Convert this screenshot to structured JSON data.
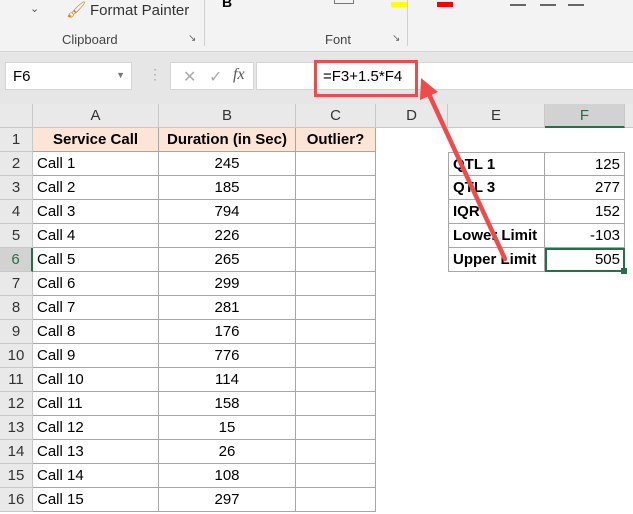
{
  "ribbon": {
    "format_painter": "Format Painter",
    "clipboard": "Clipboard",
    "font": "Font"
  },
  "formula_bar": {
    "name_box": "F6",
    "formula": "=F3+1.5*F4",
    "cancel": "✕",
    "enter": "✓",
    "fx": "fx"
  },
  "columns": [
    "A",
    "B",
    "C",
    "D",
    "E",
    "F"
  ],
  "rows": [
    "1",
    "2",
    "3",
    "4",
    "5",
    "6",
    "7",
    "8",
    "9",
    "10",
    "11",
    "12",
    "13",
    "14",
    "15",
    "16"
  ],
  "headers": {
    "a": "Service Call",
    "b": "Duration (in Sec)",
    "c": "Outlier?"
  },
  "calls": [
    {
      "name": "Call 1",
      "duration": "245"
    },
    {
      "name": "Call 2",
      "duration": "185"
    },
    {
      "name": "Call 3",
      "duration": "794"
    },
    {
      "name": "Call 4",
      "duration": "226"
    },
    {
      "name": "Call 5",
      "duration": "265"
    },
    {
      "name": "Call 6",
      "duration": "299"
    },
    {
      "name": "Call 7",
      "duration": "281"
    },
    {
      "name": "Call 8",
      "duration": "176"
    },
    {
      "name": "Call 9",
      "duration": "776"
    },
    {
      "name": "Call 10",
      "duration": "114"
    },
    {
      "name": "Call 11",
      "duration": "158"
    },
    {
      "name": "Call 12",
      "duration": "15"
    },
    {
      "name": "Call 13",
      "duration": "26"
    },
    {
      "name": "Call 14",
      "duration": "108"
    },
    {
      "name": "Call 15",
      "duration": "297"
    }
  ],
  "stats": [
    {
      "label": "QTL 1",
      "value": "125"
    },
    {
      "label": "QTL 3",
      "value": "277"
    },
    {
      "label": "IQR",
      "value": "152"
    },
    {
      "label": "Lower Limit",
      "value": "-103"
    },
    {
      "label": "Upper Limit",
      "value": "505"
    }
  ],
  "colors": {
    "accent": "#217346",
    "annotation": "#f04b4b",
    "header_fill": "#fce4d6"
  }
}
